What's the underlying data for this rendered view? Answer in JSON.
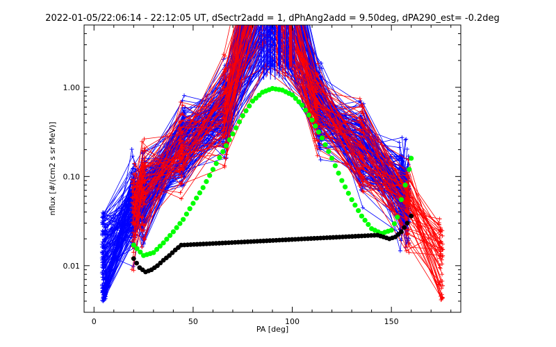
{
  "chart_data": {
    "type": "line",
    "title": "2022-01-05/22:06:14 - 22:12:05 UT, dSectr2add = 1, dPhAng2add = 9.50deg, dPA290_est=  -0.2deg",
    "xlabel": "PA [deg]",
    "ylabel": "nflux [#/(cm2 s sr MeV)]",
    "xlim": [
      -5,
      185
    ],
    "ylim": [
      0.003,
      5.0
    ],
    "y_scale": "log",
    "x_ticks": [
      0,
      50,
      100,
      150
    ],
    "x_tick_labels": [
      "0",
      "50",
      "100",
      "150"
    ],
    "y_ticks": [
      0.01,
      0.1,
      1.0
    ],
    "y_tick_labels": [
      "0.01",
      "0.10",
      "1.00"
    ],
    "grid": false,
    "colors": {
      "blue_series": "#0000ff",
      "red_series": "#ff0000",
      "green_fit": "#00ff00",
      "black_fit": "#000000"
    },
    "sampled_pa_bins_blue": [
      5,
      20,
      25,
      45,
      66,
      90,
      114,
      135,
      155,
      158
    ],
    "sampled_pa_bins_red": [
      20,
      25,
      44,
      66,
      86,
      112,
      135,
      158,
      175
    ],
    "series": [
      {
        "color": "green",
        "marker": "filled-circle",
        "x": [
          20,
          25,
          30,
          35,
          40,
          45,
          50,
          55,
          60,
          65,
          70,
          75,
          80,
          85,
          90,
          95,
          100,
          105,
          110,
          115,
          120,
          125,
          130,
          135,
          140,
          145,
          150,
          153,
          155,
          157,
          159,
          160
        ],
        "y": [
          0.017,
          0.013,
          0.014,
          0.018,
          0.024,
          0.033,
          0.05,
          0.075,
          0.12,
          0.19,
          0.3,
          0.48,
          0.7,
          0.88,
          0.97,
          0.93,
          0.82,
          0.63,
          0.43,
          0.27,
          0.16,
          0.09,
          0.055,
          0.036,
          0.026,
          0.023,
          0.025,
          0.035,
          0.055,
          0.08,
          0.12,
          0.16
        ]
      },
      {
        "color": "black",
        "marker": "filled-circle",
        "x": [
          20,
          23,
          26,
          29,
          32,
          35,
          38,
          41,
          44,
          143,
          146,
          149,
          152,
          155,
          158,
          160
        ],
        "y": [
          0.012,
          0.0095,
          0.0085,
          0.009,
          0.01,
          0.0115,
          0.013,
          0.015,
          0.017,
          0.022,
          0.021,
          0.02,
          0.021,
          0.024,
          0.03,
          0.036
        ]
      }
    ]
  }
}
